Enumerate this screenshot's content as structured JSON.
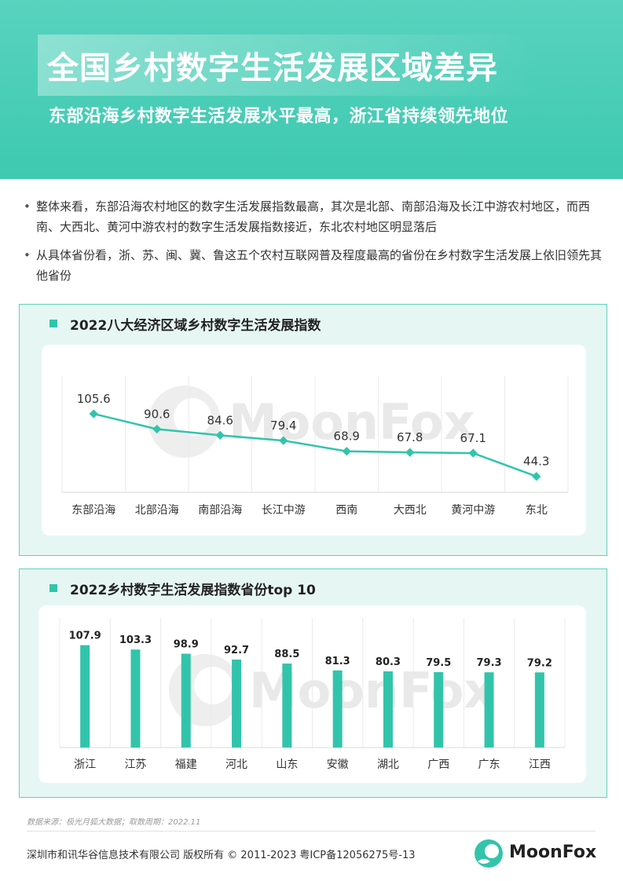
{
  "header": {
    "title": "全国乡村数字生活发展区域差异",
    "subtitle": "东部沿海乡村数字生活发展水平最高，浙江省持续领先地位"
  },
  "bullets": [
    "整体来看，东部沿海农村地区的数字生活发展指数最高，其次是北部、南部沿海及长江中游农村地区，而西南、大西北、黄河中游农村的数字生活发展指数接近，东北农村地区明显落后",
    "从具体省份看，浙、苏、闽、冀、鲁这五个农村互联网普及程度最高的省份在乡村数字生活发展上依旧领先其他省份"
  ],
  "watermark": "MoonFox",
  "colors": {
    "accent": "#32c4ab",
    "header_bg": "#46cdb5",
    "panel_bg": "#e6f7f3"
  },
  "chart_data": [
    {
      "type": "line",
      "title": "2022八大经济区域乡村数字生活发展指数",
      "categories": [
        "东部沿海",
        "北部沿海",
        "南部沿海",
        "长江中游",
        "西南",
        "大西北",
        "黄河中游",
        "东北"
      ],
      "values": [
        105.6,
        90.6,
        84.6,
        79.4,
        68.9,
        67.8,
        67.1,
        44.3
      ],
      "value_labels": [
        "105.6",
        "90.6",
        "84.6",
        "79.4",
        "68.9",
        "67.8",
        "67.1",
        "44.3"
      ],
      "ylim": [
        0,
        140
      ],
      "grid": "vertical"
    },
    {
      "type": "bar",
      "title": "2022乡村数字生活发展指数省份top 10",
      "categories": [
        "浙江",
        "江苏",
        "福建",
        "河北",
        "山东",
        "安徽",
        "湖北",
        "广西",
        "广东",
        "江西"
      ],
      "values": [
        107.9,
        103.3,
        98.9,
        92.7,
        88.5,
        81.3,
        80.3,
        79.5,
        79.3,
        79.2
      ],
      "value_labels": [
        "107.9",
        "103.3",
        "98.9",
        "92.7",
        "88.5",
        "81.3",
        "80.3",
        "79.5",
        "79.3",
        "79.2"
      ],
      "ylim": [
        0,
        120
      ],
      "grid": "vertical"
    }
  ],
  "source": "数据来源：极光月狐大数据；取数周期：2022.11",
  "footer": {
    "copyright": "深圳市和讯华谷信息技术有限公司 版权所有 © 2011-2023 粤ICP备12056275号-13",
    "logo_name": "MoonFox"
  }
}
